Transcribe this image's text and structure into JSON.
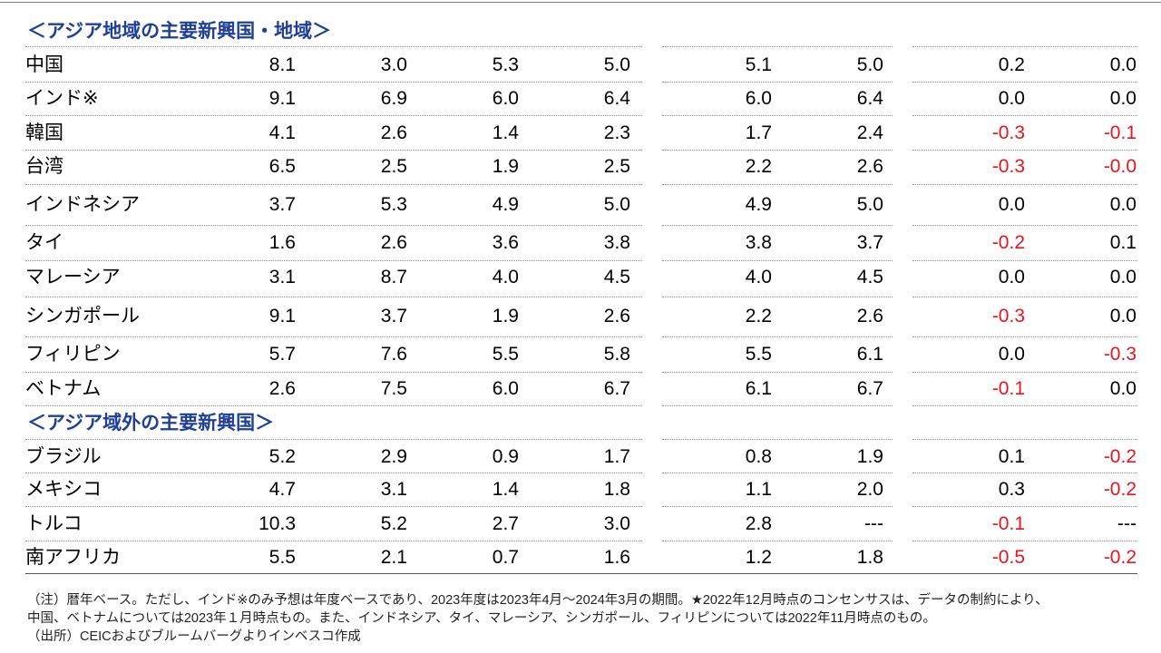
{
  "sections": [
    {
      "title": "＜アジア地域の主要新興国・地域＞",
      "rows": [
        {
          "name": "中国",
          "values": [
            "8.1",
            "3.0",
            "5.3",
            "5.0",
            "5.1",
            "5.0",
            "0.2",
            "0.0"
          ]
        },
        {
          "name": "インド※",
          "values": [
            "9.1",
            "6.9",
            "6.0",
            "6.4",
            "6.0",
            "6.4",
            "0.0",
            "0.0"
          ]
        },
        {
          "name": "韓国",
          "values": [
            "4.1",
            "2.6",
            "1.4",
            "2.3",
            "1.7",
            "2.4",
            "-0.3",
            "-0.1"
          ]
        },
        {
          "name": "台湾",
          "values": [
            "6.5",
            "2.5",
            "1.9",
            "2.5",
            "2.2",
            "2.6",
            "-0.3",
            "-0.0"
          ]
        },
        {
          "name": "インドネシア",
          "values": [
            "3.7",
            "5.3",
            "4.9",
            "5.0",
            "4.9",
            "5.0",
            "0.0",
            "0.0"
          ]
        },
        {
          "name": "タイ",
          "values": [
            "1.6",
            "2.6",
            "3.6",
            "3.8",
            "3.8",
            "3.7",
            "-0.2",
            "0.1"
          ]
        },
        {
          "name": "マレーシア",
          "values": [
            "3.1",
            "8.7",
            "4.0",
            "4.5",
            "4.0",
            "4.5",
            "0.0",
            "0.0"
          ]
        },
        {
          "name": "シンガポール",
          "values": [
            "9.1",
            "3.7",
            "1.9",
            "2.6",
            "2.2",
            "2.6",
            "-0.3",
            "0.0"
          ]
        },
        {
          "name": "フィリピン",
          "values": [
            "5.7",
            "7.6",
            "5.5",
            "5.8",
            "5.5",
            "6.1",
            "0.0",
            "-0.3"
          ]
        },
        {
          "name": "ベトナム",
          "values": [
            "2.6",
            "7.5",
            "6.0",
            "6.7",
            "6.1",
            "6.7",
            "-0.1",
            "0.0"
          ]
        }
      ]
    },
    {
      "title": "＜アジア域外の主要新興国＞",
      "rows": [
        {
          "name": "ブラジル",
          "values": [
            "5.2",
            "2.9",
            "0.9",
            "1.7",
            "0.8",
            "1.9",
            "0.1",
            "-0.2"
          ]
        },
        {
          "name": "メキシコ",
          "values": [
            "4.7",
            "3.1",
            "1.4",
            "1.8",
            "1.1",
            "2.0",
            "0.3",
            "-0.2"
          ]
        },
        {
          "name": "トルコ",
          "values": [
            "10.3",
            "5.2",
            "2.7",
            "3.0",
            "2.8",
            "---",
            "-0.1",
            "---"
          ]
        },
        {
          "name": "南アフリカ",
          "values": [
            "5.5",
            "2.1",
            "0.7",
            "1.6",
            "1.2",
            "1.8",
            "-0.5",
            "-0.2"
          ]
        }
      ]
    }
  ],
  "notes": {
    "line1": "（注）暦年ベース。ただし、インド※のみ予想は年度ベースであり、2023年度は2023年4月～2024年3月の期間。★2022年12月時点のコンセンサスは、データの制約により、",
    "line2": "中国、ベトナムについては2023年１月時点もの。また、インドネシア、タイ、マレーシア、シンガポール、フィリピンについては2022年11月時点のもの。",
    "line3": "（出所）CEICおよびブルームバーグよりインベスコ作成"
  },
  "colors": {
    "section_title": "#1f3f99",
    "negative": "#e8141e",
    "text": "#000000"
  }
}
